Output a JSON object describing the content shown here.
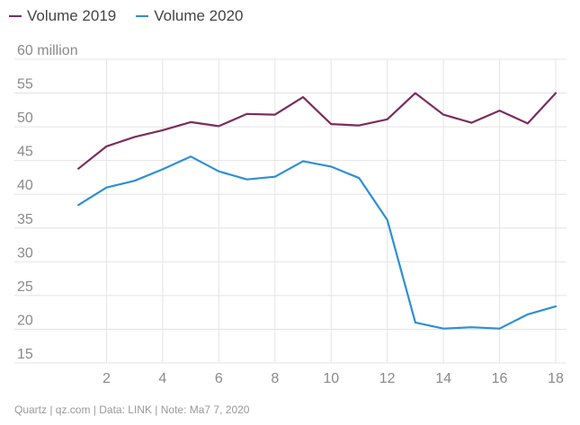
{
  "chart_data": {
    "type": "line",
    "x": [
      1,
      2,
      3,
      4,
      5,
      6,
      7,
      8,
      9,
      10,
      11,
      12,
      13,
      14,
      15,
      16,
      17,
      18
    ],
    "series": [
      {
        "name": "Volume 2019",
        "color": "#7b2d5e",
        "values": [
          43.8,
          47.1,
          48.5,
          49.5,
          50.7,
          50.1,
          51.9,
          51.8,
          54.4,
          50.4,
          50.2,
          51.1,
          55.0,
          51.8,
          50.6,
          52.4,
          50.5,
          55.0
        ]
      },
      {
        "name": "Volume 2020",
        "color": "#2f8fd5",
        "values": [
          38.4,
          41.0,
          42.0,
          43.7,
          45.6,
          43.4,
          42.2,
          42.6,
          44.9,
          44.1,
          42.4,
          36.2,
          21.0,
          20.1,
          20.3,
          20.1,
          22.2,
          23.4
        ]
      }
    ],
    "xticks": [
      2,
      4,
      6,
      8,
      10,
      12,
      14,
      16,
      18
    ],
    "xtick_labels": [
      "2",
      "4",
      "6",
      "8",
      "10",
      "12",
      "14",
      "16",
      "18"
    ],
    "yticks": [
      15,
      20,
      25,
      30,
      35,
      40,
      45,
      50,
      55,
      60
    ],
    "ytick_labels": [
      "15",
      "20",
      "25",
      "30",
      "35",
      "40",
      "45",
      "50",
      "55",
      "60 million"
    ],
    "xlim": [
      0,
      18
    ],
    "ylim": [
      15,
      60
    ],
    "grid": true,
    "legend_position": "top-left"
  },
  "legend": {
    "item1": "Volume 2019",
    "item2": "Volume 2020"
  },
  "footer": {
    "source": "Quartz | qz.com | Data: LINK | Note: Ma7 7, 2020"
  }
}
